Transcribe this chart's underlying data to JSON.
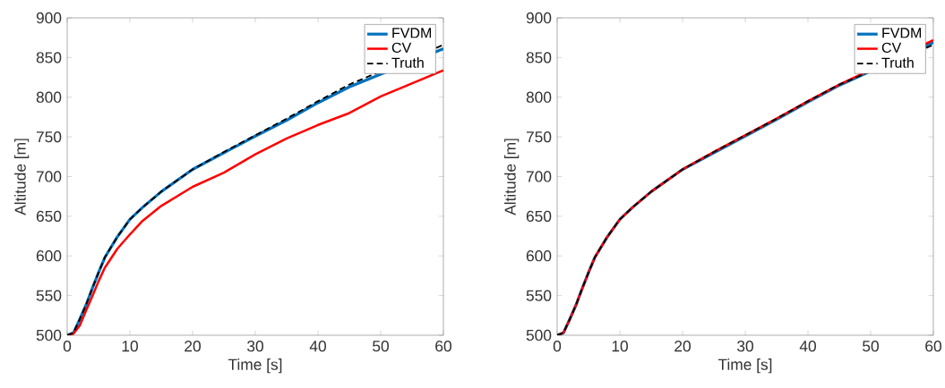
{
  "chart_data": [
    {
      "type": "line",
      "xlabel": "Time [s]",
      "ylabel": "Altitude [m]",
      "legend": "top right",
      "xlim": [
        0,
        60
      ],
      "ylim": [
        500,
        900
      ],
      "xticks": [
        0,
        10,
        20,
        30,
        40,
        50,
        60
      ],
      "yticks": [
        500,
        550,
        600,
        650,
        700,
        750,
        800,
        850,
        900
      ],
      "x": [
        0,
        1,
        2,
        3,
        4,
        5,
        6,
        8,
        10,
        12,
        15,
        20,
        25,
        30,
        35,
        40,
        45,
        50,
        55,
        60
      ],
      "series": [
        {
          "name": "FVDM",
          "color": "#0072bd",
          "line_style": "solid",
          "values": [
            500,
            503,
            520,
            538,
            559,
            579,
            598,
            624,
            646,
            661,
            681,
            709,
            730,
            751,
            771,
            793,
            813,
            null,
            null,
            861
          ]
        },
        {
          "name": "CV",
          "color": "#ff0000",
          "line_style": "solid",
          "values": [
            500,
            502,
            512,
            531,
            549,
            568,
            585,
            609,
            627,
            644,
            663,
            687,
            705,
            728,
            748,
            765,
            780,
            801,
            null,
            834
          ]
        },
        {
          "name": "Truth",
          "color": "#000000",
          "line_style": "dashed",
          "values": [
            500,
            503,
            520,
            538,
            559,
            579,
            598,
            624,
            646,
            661,
            681,
            709,
            731,
            752,
            773,
            795,
            816,
            null,
            null,
            866
          ]
        }
      ]
    },
    {
      "type": "line",
      "xlabel": "Time [s]",
      "ylabel": "Altitude [m]",
      "legend": "top right",
      "xlim": [
        0,
        60
      ],
      "ylim": [
        500,
        900
      ],
      "xticks": [
        0,
        10,
        20,
        30,
        40,
        50,
        60
      ],
      "yticks": [
        500,
        550,
        600,
        650,
        700,
        750,
        800,
        850,
        900
      ],
      "x": [
        0,
        1,
        2,
        3,
        4,
        5,
        6,
        8,
        10,
        12,
        15,
        20,
        25,
        30,
        35,
        40,
        45,
        50,
        55,
        60
      ],
      "series": [
        {
          "name": "FVDM",
          "color": "#0072bd",
          "line_style": "solid",
          "values": [
            500,
            503,
            520,
            538,
            559,
            579,
            598,
            624,
            646,
            661,
            681,
            709,
            730,
            751,
            772,
            794,
            815,
            null,
            null,
            869
          ]
        },
        {
          "name": "CV",
          "color": "#ff0000",
          "line_style": "solid",
          "values": [
            500,
            503,
            520,
            538,
            559,
            579,
            598,
            624,
            646,
            661,
            681,
            709,
            731,
            752,
            773,
            795,
            816,
            null,
            null,
            872
          ]
        },
        {
          "name": "Truth",
          "color": "#000000",
          "line_style": "dashed",
          "values": [
            500,
            503,
            520,
            538,
            559,
            579,
            598,
            624,
            646,
            661,
            681,
            709,
            731,
            752,
            773,
            795,
            816,
            null,
            null,
            866
          ]
        }
      ]
    }
  ]
}
